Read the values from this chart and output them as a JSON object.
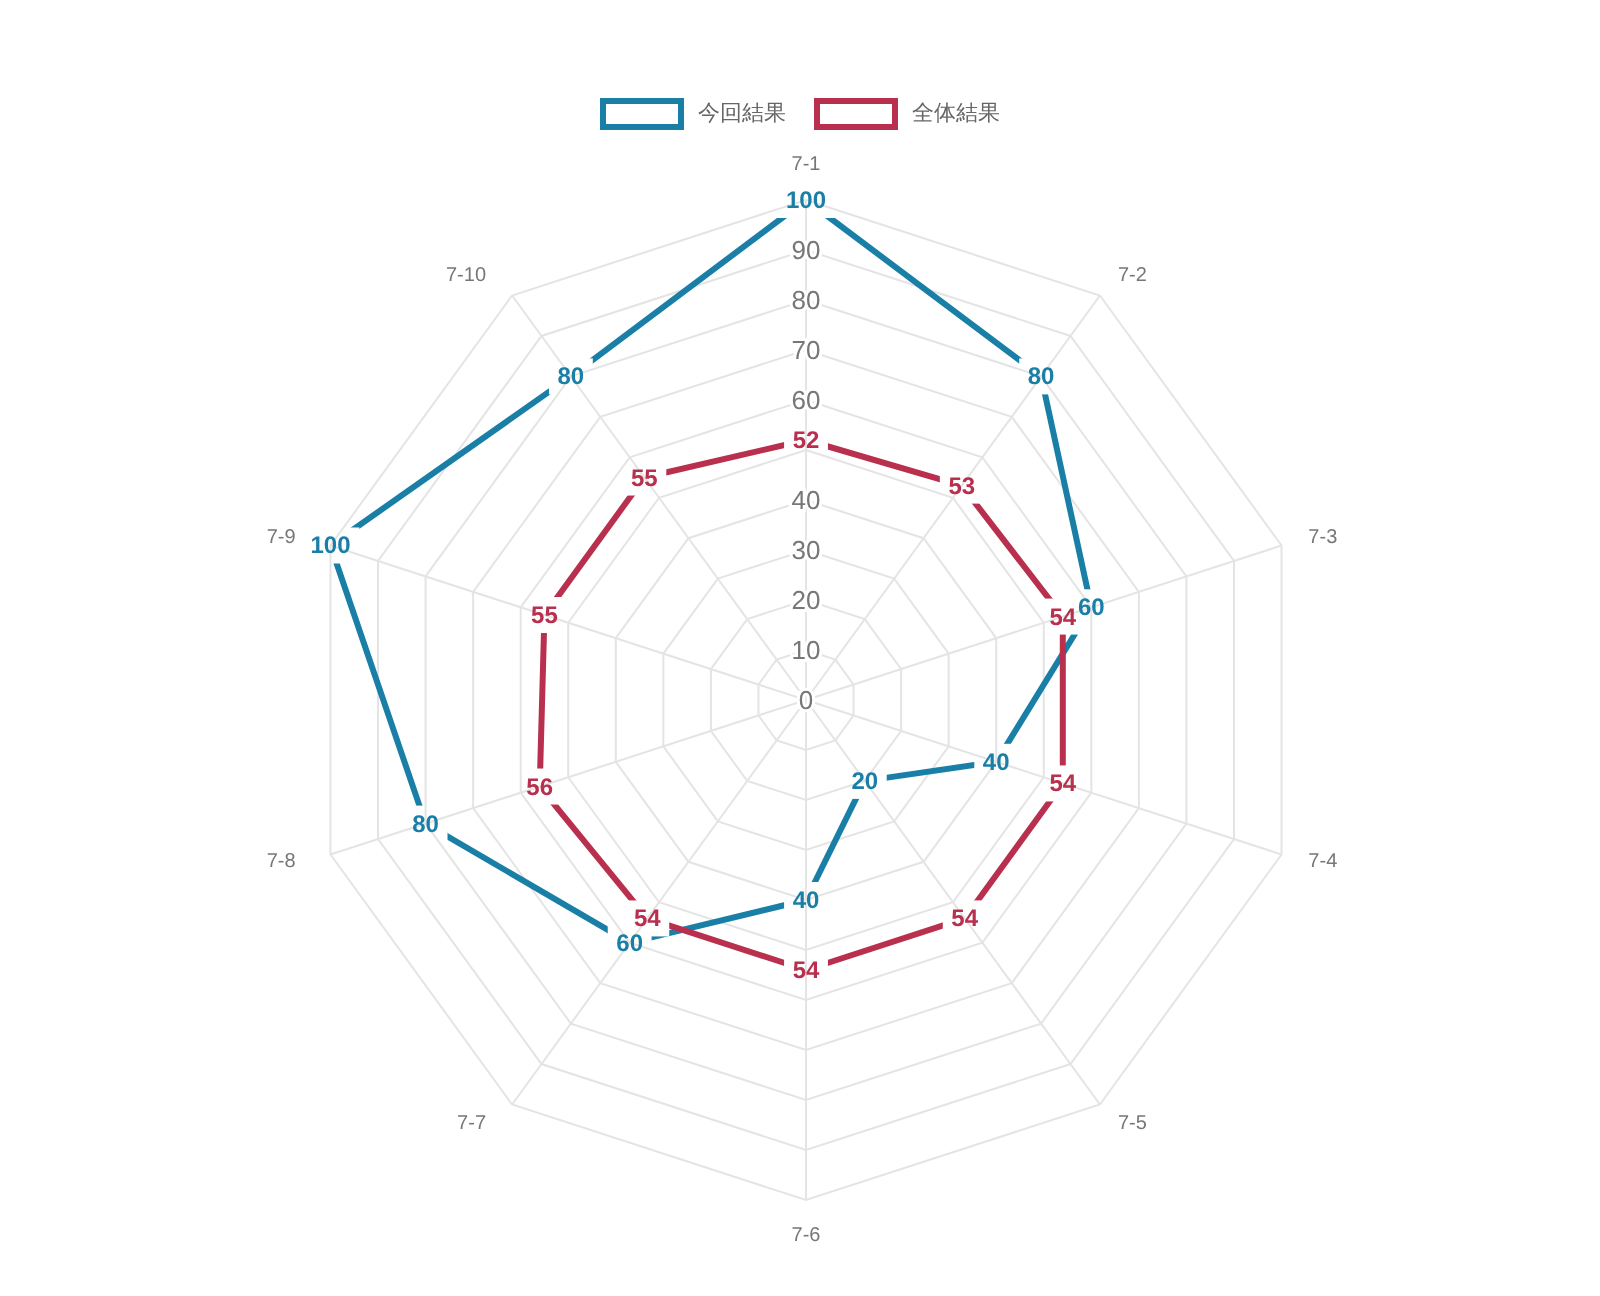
{
  "chart_data": {
    "type": "radar",
    "categories": [
      "7-1",
      "7-2",
      "7-3",
      "7-4",
      "7-5",
      "7-6",
      "7-7",
      "7-8",
      "7-9",
      "7-10"
    ],
    "series": [
      {
        "name": "今回結果",
        "color": "#1a7fa7",
        "values": [
          100,
          80,
          60,
          40,
          20,
          40,
          60,
          80,
          100,
          80
        ]
      },
      {
        "name": "全体結果",
        "color": "#b8304e",
        "values": [
          52,
          53,
          54,
          54,
          54,
          54,
          54,
          56,
          55,
          55
        ]
      }
    ],
    "ylim": [
      0,
      100
    ],
    "yticks": [
      0,
      10,
      20,
      30,
      40,
      60,
      70,
      80,
      90
    ],
    "grid": true,
    "legend": "top",
    "data_labels": true
  }
}
